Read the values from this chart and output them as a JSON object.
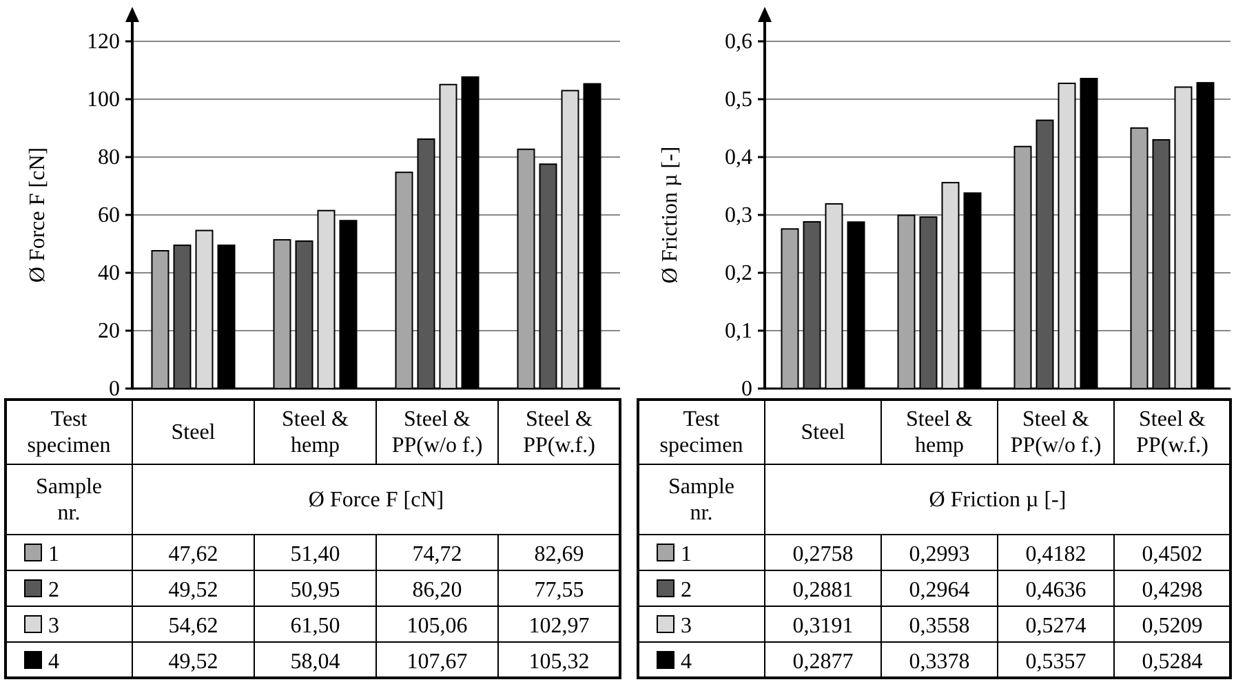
{
  "chart_data": [
    {
      "type": "bar",
      "ylabel": "Ø Force F [cN]",
      "categories": [
        "Steel",
        "Steel & hemp",
        "Steel & PP(w/o f.)",
        "Steel & PP(w.f.)"
      ],
      "ylim": [
        0,
        120
      ],
      "yticks": [
        0,
        20,
        40,
        60,
        80,
        100,
        120
      ],
      "grid": "y",
      "legend": "bottom",
      "data_labels": true,
      "annotations": [
        "Test specimen",
        "Sample nr."
      ],
      "series": [
        {
          "name": "1",
          "color": "#a6a6a6",
          "values": [
            47.62,
            51.4,
            74.72,
            82.69
          ],
          "value_labels": [
            "47,62",
            "51,40",
            "74,72",
            "82,69"
          ]
        },
        {
          "name": "2",
          "color": "#595959",
          "values": [
            49.52,
            50.95,
            86.2,
            77.55
          ],
          "value_labels": [
            "49,52",
            "50,95",
            "86,20",
            "77,55"
          ]
        },
        {
          "name": "3",
          "color": "#d9d9d9",
          "values": [
            54.62,
            61.5,
            105.06,
            102.97
          ],
          "value_labels": [
            "54,62",
            "61,50",
            "105,06",
            "102,97"
          ]
        },
        {
          "name": "4",
          "color": "#000000",
          "values": [
            49.52,
            58.04,
            107.67,
            105.32
          ],
          "value_labels": [
            "49,52",
            "58,04",
            "107,67",
            "105,32"
          ]
        }
      ]
    },
    {
      "type": "bar",
      "ylabel": "Ø Friction µ [-]",
      "categories": [
        "Steel",
        "Steel & hemp",
        "Steel & PP(w/o f.)",
        "Steel & PP(w.f.)"
      ],
      "ylim": [
        0,
        0.6
      ],
      "yticks": [
        0,
        {
          "value": 0.1,
          "label": "0,1"
        },
        {
          "value": 0.2,
          "label": "0,2"
        },
        {
          "value": 0.3,
          "label": "0,3"
        },
        {
          "value": 0.4,
          "label": "0,4"
        },
        {
          "value": 0.5,
          "label": "0,5"
        },
        {
          "value": 0.6,
          "label": "0,6"
        }
      ],
      "grid": "y",
      "legend": "bottom",
      "data_labels": true,
      "annotations": [
        "Test specimen",
        "Sample nr."
      ],
      "series": [
        {
          "name": "1",
          "color": "#a6a6a6",
          "values": [
            0.2758,
            0.2993,
            0.4182,
            0.4502
          ],
          "value_labels": [
            "0,2758",
            "0,2993",
            "0,4182",
            "0,4502"
          ]
        },
        {
          "name": "2",
          "color": "#595959",
          "values": [
            0.2881,
            0.2964,
            0.4636,
            0.4298
          ],
          "value_labels": [
            "0,2881",
            "0,2964",
            "0,4636",
            "0,4298"
          ]
        },
        {
          "name": "3",
          "color": "#d9d9d9",
          "values": [
            0.3191,
            0.3558,
            0.5274,
            0.5209
          ],
          "value_labels": [
            "0,3191",
            "0,3558",
            "0,5274",
            "0,5209"
          ]
        },
        {
          "name": "4",
          "color": "#000000",
          "values": [
            0.2877,
            0.3378,
            0.5357,
            0.5284
          ],
          "value_labels": [
            "0,2877",
            "0,3378",
            "0,5357",
            "0,5284"
          ]
        }
      ]
    }
  ]
}
